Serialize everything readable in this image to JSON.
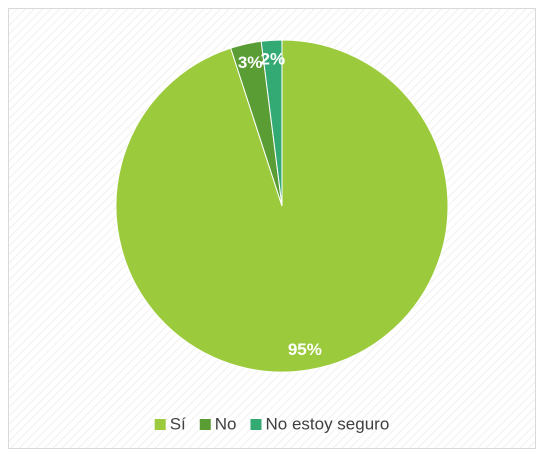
{
  "chart_data": {
    "type": "pie",
    "categories": [
      "Sí",
      "No",
      "No estoy seguro"
    ],
    "values": [
      95,
      3,
      2
    ],
    "value_labels": [
      "95%",
      "3%",
      "2%"
    ],
    "colors": [
      "#9bcb3c",
      "#5b9d35",
      "#33a974"
    ],
    "legend": "bottom"
  }
}
